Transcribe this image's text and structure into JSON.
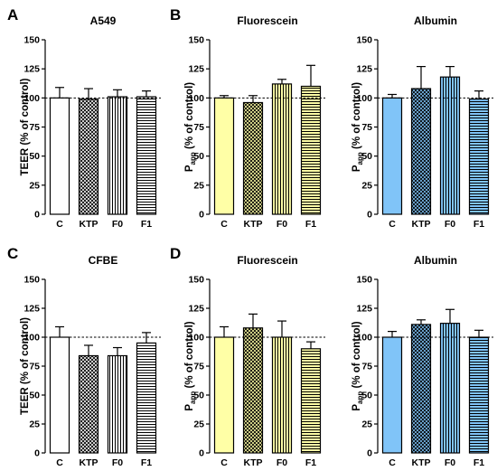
{
  "figure": {
    "panel_letters": [
      "A",
      "B",
      "C",
      "D"
    ]
  },
  "chart_data": [
    {
      "id": "A",
      "type": "bar",
      "title": "A549",
      "ylabel": "TEER (% of control)",
      "ylabel_main": "TEER (% of control)",
      "ylabel_sub": "",
      "ylim": [
        0,
        150
      ],
      "yticks": [
        0,
        25,
        50,
        75,
        100,
        125,
        150
      ],
      "reference_line": 100,
      "categories": [
        "C",
        "KTP",
        "F0",
        "F1"
      ],
      "values": [
        100,
        99,
        101,
        101
      ],
      "errors": [
        9,
        9,
        6,
        5
      ],
      "fill": "#ffffff",
      "patterns": [
        "solid",
        "crosshatch",
        "vertical",
        "horizontal"
      ]
    },
    {
      "id": "B1",
      "type": "bar",
      "title": "Fluorescein",
      "ylabel": "Papp (% of control)",
      "ylabel_main": "P",
      "ylabel_sub": "app",
      "ylabel_rest": " (% of control)",
      "ylim": [
        0,
        150
      ],
      "yticks": [
        0,
        25,
        50,
        75,
        100,
        125,
        150
      ],
      "reference_line": 100,
      "categories": [
        "C",
        "KTP",
        "F0",
        "F1"
      ],
      "values": [
        100,
        96,
        112,
        110
      ],
      "errors": [
        2,
        6,
        4,
        18
      ],
      "fill": "#ffffa6",
      "patterns": [
        "solid",
        "crosshatch",
        "vertical",
        "horizontal"
      ]
    },
    {
      "id": "B2",
      "type": "bar",
      "title": "Albumin",
      "ylabel": "Papp (% of control)",
      "ylabel_main": "P",
      "ylabel_sub": "app",
      "ylabel_rest": " (% of control)",
      "ylim": [
        0,
        150
      ],
      "yticks": [
        0,
        25,
        50,
        75,
        100,
        125,
        150
      ],
      "reference_line": 100,
      "categories": [
        "C",
        "KTP",
        "F0",
        "F1"
      ],
      "values": [
        100,
        108,
        118,
        99
      ],
      "errors": [
        3,
        19,
        9,
        7
      ],
      "fill": "#80c4f8",
      "patterns": [
        "solid",
        "crosshatch",
        "vertical",
        "horizontal"
      ]
    },
    {
      "id": "C",
      "type": "bar",
      "title": "CFBE",
      "ylabel": "TEER (% of control)",
      "ylabel_main": "TEER (% of control)",
      "ylabel_sub": "",
      "ylim": [
        0,
        150
      ],
      "yticks": [
        0,
        25,
        50,
        75,
        100,
        125,
        150
      ],
      "reference_line": 100,
      "categories": [
        "C",
        "KTP",
        "F0",
        "F1"
      ],
      "values": [
        100,
        84,
        84,
        95
      ],
      "errors": [
        9,
        9,
        7,
        9
      ],
      "fill": "#ffffff",
      "patterns": [
        "solid",
        "crosshatch",
        "vertical",
        "horizontal"
      ]
    },
    {
      "id": "D1",
      "type": "bar",
      "title": "Fluorescein",
      "ylabel": "Papp (% of control)",
      "ylabel_main": "P",
      "ylabel_sub": "app",
      "ylabel_rest": " (% of control)",
      "ylim": [
        0,
        150
      ],
      "yticks": [
        0,
        25,
        50,
        75,
        100,
        125,
        150
      ],
      "reference_line": 100,
      "categories": [
        "C",
        "KTP",
        "F0",
        "F1"
      ],
      "values": [
        100,
        108,
        100,
        90
      ],
      "errors": [
        9,
        12,
        14,
        6
      ],
      "fill": "#ffffa6",
      "patterns": [
        "solid",
        "crosshatch",
        "vertical",
        "horizontal"
      ]
    },
    {
      "id": "D2",
      "type": "bar",
      "title": "Albumin",
      "ylabel": "Papp (% of control)",
      "ylabel_main": "P",
      "ylabel_sub": "app",
      "ylabel_rest": " (% of control)",
      "ylim": [
        0,
        150
      ],
      "yticks": [
        0,
        25,
        50,
        75,
        100,
        125,
        150
      ],
      "reference_line": 100,
      "categories": [
        "C",
        "KTP",
        "F0",
        "F1"
      ],
      "values": [
        100,
        111,
        112,
        100
      ],
      "errors": [
        5,
        4,
        12,
        6
      ],
      "fill": "#80c4f8",
      "patterns": [
        "solid",
        "crosshatch",
        "vertical",
        "horizontal"
      ]
    }
  ]
}
